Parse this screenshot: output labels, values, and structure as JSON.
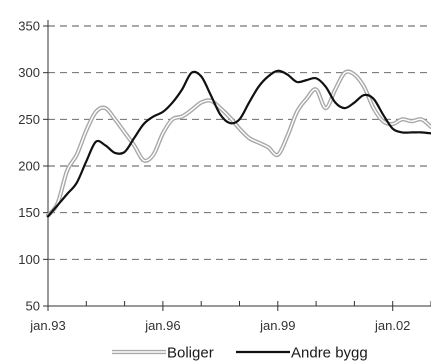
{
  "chart_data": {
    "type": "line",
    "title": "",
    "xlabel": "",
    "ylabel": "",
    "ylim": [
      50,
      350
    ],
    "yticks": [
      50,
      100,
      150,
      200,
      250,
      300,
      350
    ],
    "xlim": [
      1993.0,
      2003.0
    ],
    "xticks": [
      {
        "value": 1993.0,
        "label": "jan.93"
      },
      {
        "value": 1996.0,
        "label": "jan.96"
      },
      {
        "value": 1999.0,
        "label": "jan.99"
      },
      {
        "value": 2002.0,
        "label": "jan.02"
      }
    ],
    "grid": {
      "horizontal": true,
      "style": "dashed"
    },
    "legend": "bottom",
    "series": [
      {
        "name": "Boliger",
        "color": "#a8a8a8",
        "style": "double",
        "x": [
          1993.0,
          1993.25,
          1993.5,
          1993.75,
          1994.0,
          1994.25,
          1994.5,
          1994.75,
          1995.0,
          1995.25,
          1995.5,
          1995.75,
          1996.0,
          1996.25,
          1996.5,
          1996.75,
          1997.0,
          1997.25,
          1997.5,
          1997.75,
          1998.0,
          1998.25,
          1998.5,
          1998.75,
          1999.0,
          1999.25,
          1999.5,
          1999.75,
          2000.0,
          2000.25,
          2000.5,
          2000.75,
          2001.0,
          2001.25,
          2001.5,
          2001.75,
          2002.0,
          2002.25,
          2002.5,
          2002.75,
          2003.0
        ],
        "values": [
          147,
          160,
          195,
          212,
          238,
          258,
          262,
          250,
          236,
          222,
          206,
          212,
          235,
          250,
          253,
          260,
          268,
          270,
          262,
          252,
          240,
          230,
          225,
          220,
          212,
          232,
          258,
          272,
          282,
          262,
          282,
          300,
          298,
          285,
          262,
          248,
          245,
          250,
          248,
          250,
          242
        ]
      },
      {
        "name": "Andre bygg",
        "color": "#111111",
        "style": "solid",
        "x": [
          1993.0,
          1993.25,
          1993.5,
          1993.75,
          1994.0,
          1994.25,
          1994.5,
          1994.75,
          1995.0,
          1995.25,
          1995.5,
          1995.75,
          1996.0,
          1996.25,
          1996.5,
          1996.75,
          1997.0,
          1997.25,
          1997.5,
          1997.75,
          1998.0,
          1998.25,
          1998.5,
          1998.75,
          1999.0,
          1999.25,
          1999.5,
          1999.75,
          2000.0,
          2000.25,
          2000.5,
          2000.75,
          2001.0,
          2001.25,
          2001.5,
          2001.75,
          2002.0,
          2002.25,
          2002.5,
          2002.75,
          2003.0
        ],
        "values": [
          146,
          158,
          170,
          182,
          205,
          226,
          222,
          214,
          215,
          230,
          245,
          253,
          258,
          268,
          282,
          300,
          296,
          276,
          255,
          246,
          250,
          268,
          285,
          296,
          302,
          298,
          290,
          292,
          294,
          285,
          268,
          262,
          268,
          276,
          272,
          255,
          240,
          236,
          236,
          236,
          235
        ]
      }
    ]
  }
}
